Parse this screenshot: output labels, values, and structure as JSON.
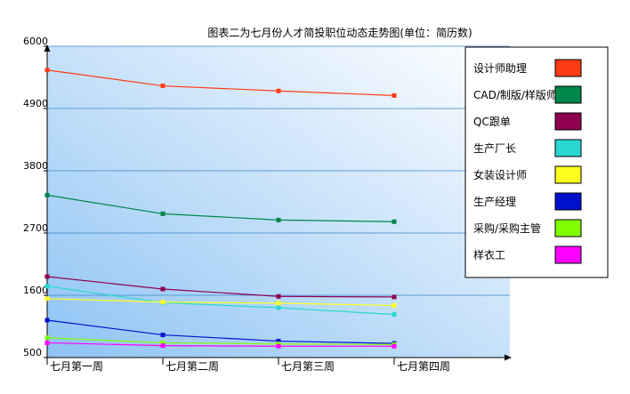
{
  "chart_data": {
    "type": "line",
    "title": "图表二为七月份人才简投职位动态走势图(单位：简历数)",
    "categories": [
      "七月第一周",
      "七月第二周",
      "七月第三周",
      "七月第四周"
    ],
    "y_ticks": [
      "6000",
      "4900",
      "3800",
      "2700",
      "1600",
      "500"
    ],
    "ylim": [
      500,
      6000
    ],
    "grid": true,
    "legend_position": "right",
    "series": [
      {
        "name": "设计师助理",
        "color": "#ff3c14",
        "values": [
          5580,
          5300,
          5210,
          5130
        ]
      },
      {
        "name": "CAD/制版/样版师",
        "color": "#00864a",
        "values": [
          3370,
          3040,
          2930,
          2900
        ]
      },
      {
        "name": "QC跟单",
        "color": "#900050",
        "values": [
          1930,
          1710,
          1580,
          1570
        ]
      },
      {
        "name": "生产厂长",
        "color": "#28d8d0",
        "values": [
          1760,
          1470,
          1380,
          1260
        ]
      },
      {
        "name": "女装设计师",
        "color": "#ffff1e",
        "values": [
          1540,
          1480,
          1460,
          1420
        ]
      },
      {
        "name": "生产经理",
        "color": "#0010cc",
        "values": [
          1160,
          900,
          790,
          750
        ]
      },
      {
        "name": "采购/采购主管",
        "color": "#80ff00",
        "values": [
          850,
          760,
          740,
          730
        ]
      },
      {
        "name": "样衣工",
        "color": "#ff00ff",
        "values": [
          760,
          710,
          700,
          700
        ]
      }
    ]
  }
}
